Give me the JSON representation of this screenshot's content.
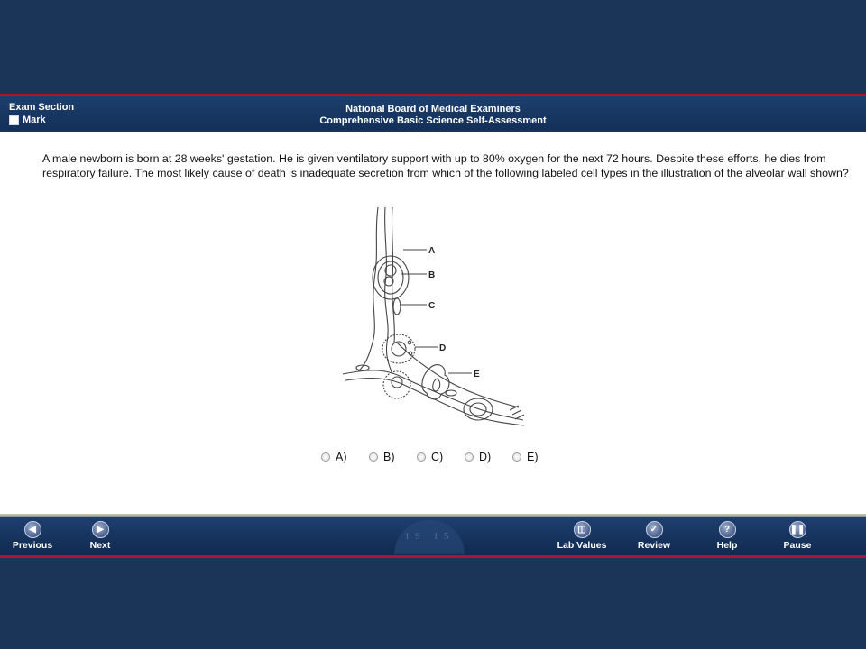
{
  "header": {
    "section_label": "Exam Section",
    "mark_label": "Mark",
    "title": "National Board of Medical Examiners",
    "subtitle": "Comprehensive Basic Science Self-Assessment"
  },
  "question": {
    "text": "A male newborn is born at 28 weeks' gestation. He is given ventilatory support with up to 80% oxygen for the next 72 hours. Despite these efforts, he dies from respiratory failure. The most likely cause of death is inadequate secretion from which of the following labeled cell types in the illustration of the alveolar wall shown?"
  },
  "figure": {
    "labels": [
      "A",
      "B",
      "C",
      "D",
      "E"
    ]
  },
  "answers": [
    "A)",
    "B)",
    "C)",
    "D)",
    "E)"
  ],
  "seal_text": "19 15",
  "footer": {
    "previous": "Previous",
    "next": "Next",
    "lab_values": "Lab Values",
    "review": "Review",
    "help": "Help",
    "pause": "Pause"
  },
  "icons": {
    "previous": "left-arrow-icon",
    "next": "right-arrow-icon",
    "lab_values": "lab-values-icon",
    "review": "checkmark-icon",
    "help": "question-icon",
    "pause": "pause-icon"
  }
}
